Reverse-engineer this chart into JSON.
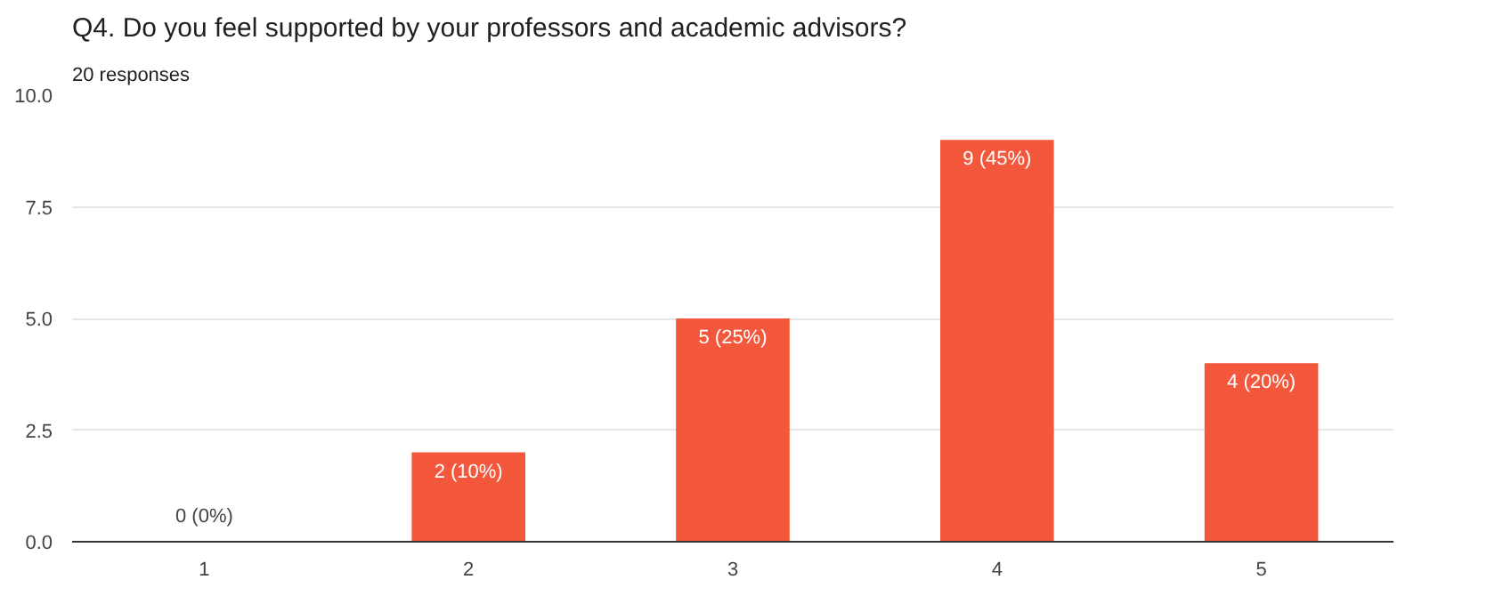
{
  "chart_data": {
    "type": "bar",
    "title": "Q4. Do you feel supported by your professors and academic advisors?",
    "subtitle": "20 responses",
    "categories": [
      "1",
      "2",
      "3",
      "4",
      "5"
    ],
    "values": [
      0,
      2,
      5,
      9,
      4
    ],
    "value_labels": [
      "0 (0%)",
      "2 (10%)",
      "5 (25%)",
      "9 (45%)",
      "4 (20%)"
    ],
    "color": "#f4583c",
    "ylim": [
      0,
      10
    ],
    "yticks": [
      {
        "value": 0,
        "label": "0.0"
      },
      {
        "value": 2.5,
        "label": "2.5"
      },
      {
        "value": 5,
        "label": "5.0"
      },
      {
        "value": 7.5,
        "label": "7.5"
      },
      {
        "value": 10,
        "label": "10.0"
      }
    ],
    "grid": "y"
  }
}
